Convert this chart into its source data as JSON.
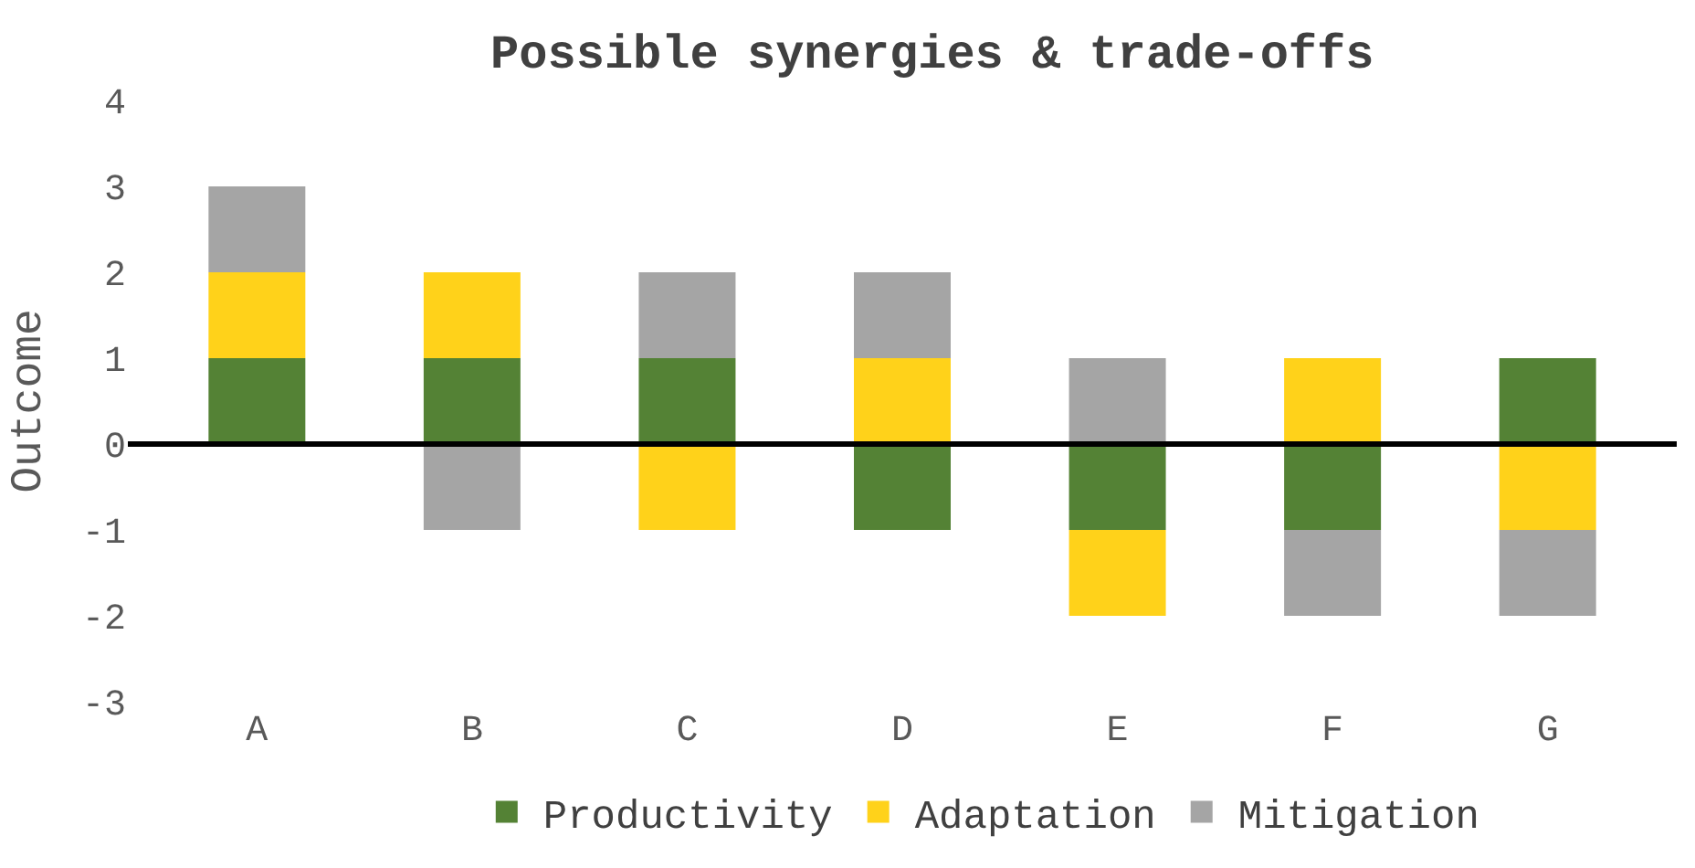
{
  "chart_data": {
    "type": "bar",
    "title": "Possible synergies & trade-offs",
    "ylabel": "Outcome",
    "stacked": true,
    "categories": [
      "A",
      "B",
      "C",
      "D",
      "E",
      "F",
      "G"
    ],
    "series": [
      {
        "name": "Productivity",
        "color": "#548235",
        "values": [
          1,
          1,
          1,
          -1,
          -1,
          -1,
          1
        ]
      },
      {
        "name": "Adaptation",
        "color": "#ffd21a",
        "values": [
          1,
          1,
          -1,
          1,
          -1,
          1,
          -1
        ]
      },
      {
        "name": "Mitigation",
        "color": "#a5a5a5",
        "values": [
          1,
          -1,
          1,
          1,
          1,
          -1,
          -1
        ]
      }
    ],
    "ylim": [
      -3,
      4
    ],
    "yticks": [
      -3,
      -2,
      -1,
      0,
      1,
      2,
      3,
      4
    ],
    "ref_lines": [
      {
        "axis": "y",
        "value": 0,
        "color": "#000000"
      }
    ],
    "legend": "bottom"
  }
}
